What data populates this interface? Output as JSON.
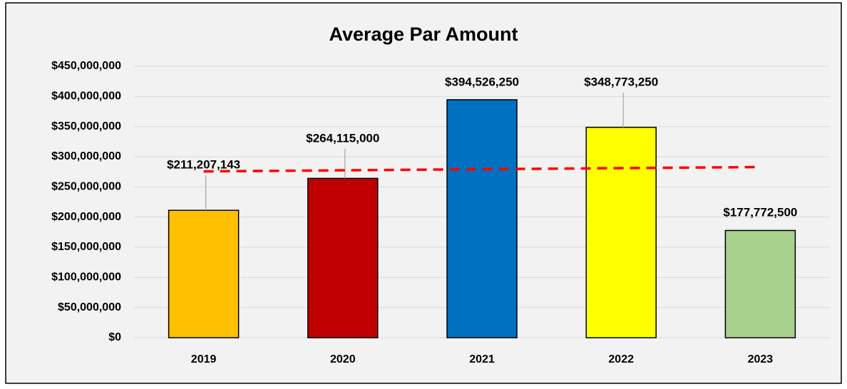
{
  "chart_data": {
    "type": "bar",
    "title": "Average Par Amount",
    "categories": [
      "2019",
      "2020",
      "2021",
      "2022",
      "2023"
    ],
    "values": [
      211207143,
      264115000,
      394526250,
      348773250,
      177772500
    ],
    "value_labels": [
      "$211,207,143",
      "$264,115,000",
      "$394,526,250",
      "$348,773,250",
      "$177,772,500"
    ],
    "colors": [
      "#ffc000",
      "#c00000",
      "#0070c0",
      "#ffff00",
      "#a9d18e"
    ],
    "trendline": {
      "values": [
        275700000,
        277500000,
        279300000,
        281100000,
        282900000
      ],
      "color": "#ff0000"
    },
    "ylim": [
      0,
      450000000
    ],
    "yticks": [
      {
        "value": 0,
        "label": "$0"
      },
      {
        "value": 50000000,
        "label": "$50,000,000"
      },
      {
        "value": 100000000,
        "label": "$100,000,000"
      },
      {
        "value": 150000000,
        "label": "$150,000,000"
      },
      {
        "value": 200000000,
        "label": "$200,000,000"
      },
      {
        "value": 250000000,
        "label": "$250,000,000"
      },
      {
        "value": 300000000,
        "label": "$300,000,000"
      },
      {
        "value": 350000000,
        "label": "$350,000,000"
      },
      {
        "value": 400000000,
        "label": "$400,000,000"
      },
      {
        "value": 450000000,
        "label": "$450,000,000"
      }
    ],
    "grid": true
  }
}
